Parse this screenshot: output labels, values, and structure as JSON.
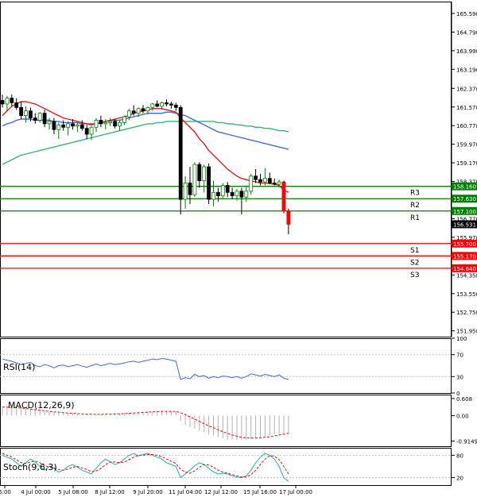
{
  "chart_data": [
    {
      "type": "candlestick",
      "panel": "price",
      "ylim": [
        151.7,
        166.1
      ],
      "y_ticks": [
        "165.590",
        "164.790",
        "163.990",
        "163.190",
        "162.370",
        "161.570",
        "160.770",
        "159.970",
        "159.170",
        "158.370",
        "157.570",
        "156.770",
        "155.970",
        "155.170",
        "154.350",
        "153.550",
        "152.750",
        "151.950"
      ],
      "y_tick_values": [
        165.59,
        164.79,
        163.99,
        163.19,
        162.37,
        161.57,
        160.77,
        159.97,
        159.17,
        158.37,
        157.57,
        156.77,
        155.97,
        155.17,
        154.35,
        153.55,
        152.75,
        151.95
      ],
      "x_ticks": [
        "6:00",
        "4 Jul 00:00",
        "5 Jul 08:00",
        "8 Jul 12:00",
        "9 Jul 20:00",
        "11 Jul 04:00",
        "12 Jul 12:00",
        "15 Jul 16:00",
        "17 Jul 00:00"
      ],
      "candles": [
        {
          "o": 161.85,
          "h": 162.1,
          "l": 161.55,
          "c": 161.7
        },
        {
          "o": 161.7,
          "h": 162.05,
          "l": 161.4,
          "c": 161.95
        },
        {
          "o": 161.95,
          "h": 162.1,
          "l": 161.6,
          "c": 161.75
        },
        {
          "o": 161.75,
          "h": 161.95,
          "l": 161.45,
          "c": 161.55
        },
        {
          "o": 161.55,
          "h": 161.8,
          "l": 161.05,
          "c": 161.2
        },
        {
          "o": 161.2,
          "h": 161.6,
          "l": 160.9,
          "c": 161.4
        },
        {
          "o": 161.4,
          "h": 161.55,
          "l": 160.95,
          "c": 161.1
        },
        {
          "o": 161.1,
          "h": 161.3,
          "l": 160.85,
          "c": 161.0
        },
        {
          "o": 161.0,
          "h": 161.35,
          "l": 160.9,
          "c": 161.3
        },
        {
          "o": 161.3,
          "h": 161.45,
          "l": 160.7,
          "c": 160.85
        },
        {
          "o": 160.85,
          "h": 161.1,
          "l": 160.6,
          "c": 160.95
        },
        {
          "o": 160.95,
          "h": 161.1,
          "l": 160.4,
          "c": 160.6
        },
        {
          "o": 160.6,
          "h": 160.9,
          "l": 160.2,
          "c": 160.8
        },
        {
          "o": 160.8,
          "h": 161.0,
          "l": 160.55,
          "c": 160.7
        },
        {
          "o": 160.7,
          "h": 160.95,
          "l": 160.35,
          "c": 160.85
        },
        {
          "o": 160.85,
          "h": 161.05,
          "l": 160.6,
          "c": 160.75
        },
        {
          "o": 160.75,
          "h": 160.9,
          "l": 160.5,
          "c": 160.8
        },
        {
          "o": 160.8,
          "h": 161.0,
          "l": 160.55,
          "c": 160.65
        },
        {
          "o": 160.65,
          "h": 160.8,
          "l": 160.2,
          "c": 160.4
        },
        {
          "o": 160.4,
          "h": 160.75,
          "l": 160.15,
          "c": 160.7
        },
        {
          "o": 160.7,
          "h": 161.1,
          "l": 160.5,
          "c": 161.0
        },
        {
          "o": 161.0,
          "h": 161.2,
          "l": 160.7,
          "c": 160.85
        },
        {
          "o": 160.85,
          "h": 161.05,
          "l": 160.6,
          "c": 160.9
        },
        {
          "o": 160.9,
          "h": 161.1,
          "l": 160.75,
          "c": 160.95
        },
        {
          "o": 160.95,
          "h": 161.05,
          "l": 160.65,
          "c": 160.75
        },
        {
          "o": 160.75,
          "h": 161.0,
          "l": 160.55,
          "c": 160.9
        },
        {
          "o": 160.9,
          "h": 161.2,
          "l": 160.8,
          "c": 161.15
        },
        {
          "o": 161.15,
          "h": 161.5,
          "l": 161.0,
          "c": 161.4
        },
        {
          "o": 161.4,
          "h": 161.65,
          "l": 161.2,
          "c": 161.3
        },
        {
          "o": 161.3,
          "h": 161.55,
          "l": 161.15,
          "c": 161.5
        },
        {
          "o": 161.5,
          "h": 161.65,
          "l": 161.3,
          "c": 161.4
        },
        {
          "o": 161.4,
          "h": 161.6,
          "l": 161.25,
          "c": 161.55
        },
        {
          "o": 161.55,
          "h": 161.75,
          "l": 161.4,
          "c": 161.7
        },
        {
          "o": 161.7,
          "h": 161.85,
          "l": 161.55,
          "c": 161.6
        },
        {
          "o": 161.6,
          "h": 161.8,
          "l": 161.45,
          "c": 161.75
        },
        {
          "o": 161.75,
          "h": 161.9,
          "l": 161.6,
          "c": 161.7
        },
        {
          "o": 161.7,
          "h": 161.8,
          "l": 161.5,
          "c": 161.65
        },
        {
          "o": 161.65,
          "h": 161.75,
          "l": 161.4,
          "c": 161.55
        },
        {
          "o": 161.55,
          "h": 161.65,
          "l": 156.95,
          "c": 157.6
        },
        {
          "o": 157.6,
          "h": 158.6,
          "l": 157.2,
          "c": 158.3
        },
        {
          "o": 158.3,
          "h": 159.0,
          "l": 157.4,
          "c": 157.8
        },
        {
          "o": 157.8,
          "h": 159.2,
          "l": 157.7,
          "c": 159.1
        },
        {
          "o": 159.1,
          "h": 159.2,
          "l": 158.1,
          "c": 158.4
        },
        {
          "o": 158.4,
          "h": 159.1,
          "l": 157.9,
          "c": 159.0
        },
        {
          "o": 159.0,
          "h": 159.15,
          "l": 157.4,
          "c": 157.6
        },
        {
          "o": 157.6,
          "h": 158.4,
          "l": 157.3,
          "c": 157.9
        },
        {
          "o": 157.9,
          "h": 158.1,
          "l": 157.5,
          "c": 157.75
        },
        {
          "o": 157.75,
          "h": 158.3,
          "l": 157.6,
          "c": 158.2
        },
        {
          "o": 158.2,
          "h": 158.35,
          "l": 157.7,
          "c": 157.9
        },
        {
          "o": 157.9,
          "h": 158.1,
          "l": 157.6,
          "c": 157.75
        },
        {
          "o": 157.75,
          "h": 158.05,
          "l": 157.55,
          "c": 157.95
        },
        {
          "o": 157.95,
          "h": 158.1,
          "l": 156.95,
          "c": 157.7
        },
        {
          "o": 157.7,
          "h": 158.2,
          "l": 157.5,
          "c": 157.95
        },
        {
          "o": 157.95,
          "h": 158.7,
          "l": 157.8,
          "c": 158.6
        },
        {
          "o": 158.6,
          "h": 158.9,
          "l": 158.3,
          "c": 158.45
        },
        {
          "o": 158.45,
          "h": 158.7,
          "l": 158.2,
          "c": 158.35
        },
        {
          "o": 158.35,
          "h": 158.95,
          "l": 158.2,
          "c": 158.5
        },
        {
          "o": 158.5,
          "h": 158.75,
          "l": 158.25,
          "c": 158.3
        },
        {
          "o": 158.3,
          "h": 158.5,
          "l": 158.2,
          "c": 158.25
        },
        {
          "o": 158.25,
          "h": 158.45,
          "l": 158.1,
          "c": 158.35
        },
        {
          "o": 158.35,
          "h": 158.4,
          "l": 157.0,
          "c": 157.1
        },
        {
          "o": 157.1,
          "h": 157.2,
          "l": 156.1,
          "c": 156.53
        }
      ],
      "ma_red": [
        161.2,
        161.4,
        161.6,
        161.7,
        161.8,
        161.8,
        161.75,
        161.7,
        161.6,
        161.5,
        161.4,
        161.3,
        161.2,
        161.1,
        161.05,
        161.0,
        160.95,
        160.9,
        160.85,
        160.8,
        160.85,
        160.9,
        160.95,
        161.0,
        161.05,
        161.1,
        161.15,
        161.2,
        161.3,
        161.35,
        161.4,
        161.45,
        161.5,
        161.5,
        161.5,
        161.45,
        161.4,
        161.35,
        161.1,
        160.9,
        160.7,
        160.5,
        160.2,
        160.0,
        159.7,
        159.5,
        159.3,
        159.1,
        158.9,
        158.75,
        158.6,
        158.5,
        158.45,
        158.4,
        158.35,
        158.3,
        158.3,
        158.28,
        158.25,
        158.2,
        158.0,
        157.9
      ],
      "ma_blue": [
        160.75,
        160.85,
        160.9,
        161.0,
        161.05,
        161.05,
        161.05,
        161.0,
        161.0,
        161.0,
        161.0,
        160.95,
        160.95,
        160.9,
        160.9,
        160.9,
        160.9,
        160.85,
        160.85,
        160.85,
        160.85,
        160.9,
        160.95,
        161.0,
        161.0,
        161.0,
        161.05,
        161.1,
        161.15,
        161.2,
        161.25,
        161.3,
        161.3,
        161.3,
        161.3,
        161.35,
        161.35,
        161.3,
        161.25,
        161.2,
        161.1,
        161.0,
        160.9,
        160.8,
        160.7,
        160.6,
        160.5,
        160.45,
        160.4,
        160.35,
        160.3,
        160.25,
        160.2,
        160.15,
        160.1,
        160.05,
        160.0,
        159.95,
        159.9,
        159.85,
        159.8,
        159.75
      ],
      "ma_green": [
        159.1,
        159.2,
        159.3,
        159.4,
        159.5,
        159.55,
        159.6,
        159.65,
        159.7,
        159.75,
        159.8,
        159.85,
        159.9,
        159.95,
        160.0,
        160.05,
        160.1,
        160.15,
        160.2,
        160.25,
        160.3,
        160.35,
        160.4,
        160.45,
        160.5,
        160.55,
        160.6,
        160.65,
        160.7,
        160.75,
        160.8,
        160.85,
        160.85,
        160.9,
        160.9,
        160.95,
        160.95,
        160.95,
        160.95,
        160.95,
        160.95,
        160.95,
        160.95,
        160.95,
        160.95,
        160.95,
        160.9,
        160.9,
        160.85,
        160.85,
        160.8,
        160.8,
        160.75,
        160.75,
        160.7,
        160.7,
        160.65,
        160.65,
        160.6,
        160.55,
        160.55,
        160.5
      ],
      "levels": [
        {
          "name": "R3",
          "value": 158.16,
          "label": "158.160",
          "color": "#008000"
        },
        {
          "name": "R2",
          "value": 157.63,
          "label": "157.630",
          "color": "#008000"
        },
        {
          "name": "R1",
          "value": 157.1,
          "label": "157.100",
          "color": "#008000"
        },
        {
          "name": "S1",
          "value": 155.7,
          "label": "155.700",
          "color": "#ff0000"
        },
        {
          "name": "S2",
          "value": 155.17,
          "label": "155.170",
          "color": "#ff0000"
        },
        {
          "name": "S3",
          "value": 154.64,
          "label": "154.640",
          "color": "#ff0000"
        }
      ],
      "current_price": {
        "value": 156.531,
        "label": "156.531"
      },
      "colors": {
        "ma_red": "#e8191c",
        "ma_blue": "#4169e1",
        "ma_green": "#3cb371",
        "bull": "#008000",
        "bear": "#000000",
        "support": "#ff0000",
        "resistance": "#008000"
      }
    },
    {
      "type": "line",
      "panel": "rsi",
      "title": "RSI(14)",
      "ylim": [
        0,
        100
      ],
      "y_ticks": [
        "100",
        "70",
        "30",
        "0"
      ],
      "y_tick_values": [
        100,
        70,
        30,
        0
      ],
      "values": [
        62,
        60,
        58,
        55,
        52,
        54,
        56,
        50,
        48,
        52,
        50,
        46,
        50,
        51,
        48,
        50,
        52,
        49,
        47,
        50,
        53,
        50,
        52,
        54,
        52,
        53,
        55,
        57,
        58,
        56,
        58,
        60,
        62,
        61,
        63,
        62,
        60,
        58,
        25,
        28,
        26,
        34,
        30,
        32,
        27,
        30,
        28,
        31,
        30,
        28,
        30,
        27,
        30,
        35,
        33,
        31,
        34,
        32,
        30,
        33,
        27,
        25
      ],
      "color": "#4169e1"
    },
    {
      "type": "bar+line",
      "panel": "macd",
      "title": "MACD(12,26,9)",
      "ylim": [
        -1.1,
        0.75
      ],
      "y_ticks": [
        "0.608",
        "0.00",
        "-0.9149"
      ],
      "y_tick_values": [
        0.608,
        0.0,
        -0.9149
      ],
      "histogram": [
        0.28,
        0.3,
        0.3,
        0.28,
        0.25,
        0.23,
        0.21,
        0.19,
        0.17,
        0.15,
        0.13,
        0.11,
        0.1,
        0.09,
        0.08,
        0.07,
        0.06,
        0.05,
        0.04,
        0.03,
        0.03,
        0.04,
        0.05,
        0.06,
        0.06,
        0.07,
        0.08,
        0.1,
        0.12,
        0.13,
        0.14,
        0.15,
        0.16,
        0.16,
        0.17,
        0.17,
        0.16,
        0.15,
        -0.2,
        -0.32,
        -0.42,
        -0.48,
        -0.55,
        -0.6,
        -0.68,
        -0.72,
        -0.78,
        -0.82,
        -0.85,
        -0.86,
        -0.88,
        -0.88,
        -0.87,
        -0.85,
        -0.82,
        -0.78,
        -0.75,
        -0.72,
        -0.69,
        -0.66,
        -0.65,
        -0.65
      ],
      "signal": [
        0.3,
        0.3,
        0.29,
        0.28,
        0.27,
        0.25,
        0.23,
        0.21,
        0.19,
        0.17,
        0.15,
        0.13,
        0.12,
        0.1,
        0.09,
        0.08,
        0.07,
        0.06,
        0.05,
        0.05,
        0.04,
        0.04,
        0.05,
        0.05,
        0.06,
        0.06,
        0.07,
        0.08,
        0.09,
        0.1,
        0.11,
        0.12,
        0.13,
        0.14,
        0.15,
        0.15,
        0.15,
        0.15,
        0.1,
        0.03,
        -0.05,
        -0.13,
        -0.21,
        -0.29,
        -0.37,
        -0.44,
        -0.51,
        -0.58,
        -0.64,
        -0.7,
        -0.74,
        -0.78,
        -0.8,
        -0.81,
        -0.81,
        -0.8,
        -0.78,
        -0.76,
        -0.73,
        -0.7,
        -0.67,
        -0.64
      ],
      "colors": {
        "histogram": "#b0b0b0",
        "signal": "#ff0000"
      }
    },
    {
      "type": "line",
      "panel": "stoch",
      "title": "Stoch(9,6,3)",
      "ylim": [
        0,
        100
      ],
      "y_ticks": [
        "80",
        "20"
      ],
      "y_tick_values": [
        80,
        20
      ],
      "main": [
        80,
        75,
        70,
        60,
        50,
        60,
        70,
        62,
        50,
        40,
        50,
        45,
        35,
        40,
        50,
        55,
        48,
        40,
        35,
        30,
        45,
        60,
        70,
        62,
        55,
        60,
        70,
        80,
        85,
        78,
        82,
        85,
        80,
        75,
        70,
        60,
        55,
        50,
        20,
        30,
        40,
        52,
        60,
        55,
        45,
        35,
        30,
        32,
        30,
        25,
        22,
        20,
        25,
        40,
        60,
        75,
        85,
        80,
        70,
        50,
        20,
        10
      ],
      "signal": [
        85,
        80,
        75,
        68,
        60,
        58,
        62,
        64,
        60,
        52,
        48,
        46,
        42,
        40,
        43,
        48,
        50,
        46,
        42,
        36,
        38,
        45,
        55,
        62,
        62,
        60,
        62,
        68,
        75,
        80,
        80,
        82,
        82,
        80,
        76,
        70,
        64,
        58,
        42,
        35,
        32,
        38,
        48,
        55,
        54,
        48,
        40,
        35,
        32,
        28,
        25,
        22,
        22,
        28,
        40,
        55,
        70,
        78,
        78,
        68,
        50,
        30
      ],
      "colors": {
        "main": "#20b2aa",
        "signal": "#ff0000"
      }
    }
  ]
}
